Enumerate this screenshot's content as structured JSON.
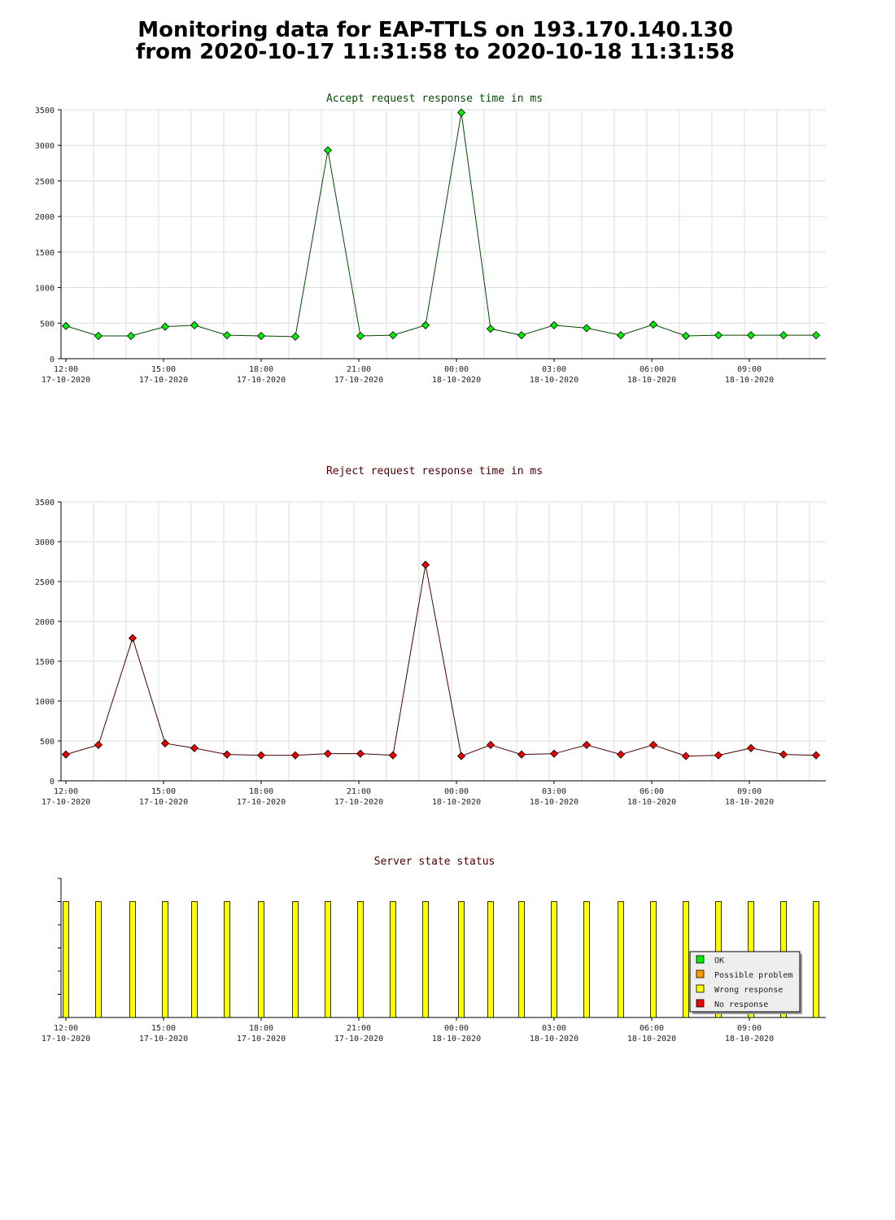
{
  "page": {
    "title_line1": "Monitoring data for EAP-TTLS on 193.170.140.130",
    "title_line2": "from 2020-10-17 11:31:58 to 2020-10-18 11:31:58"
  },
  "x_axis": {
    "ticks": [
      {
        "time": "12:00",
        "date": "17-10-2020",
        "h": 0
      },
      {
        "time": "15:00",
        "date": "17-10-2020",
        "h": 3
      },
      {
        "time": "18:00",
        "date": "17-10-2020",
        "h": 6
      },
      {
        "time": "21:00",
        "date": "17-10-2020",
        "h": 9
      },
      {
        "time": "00:00",
        "date": "18-10-2020",
        "h": 12
      },
      {
        "time": "03:00",
        "date": "18-10-2020",
        "h": 15
      },
      {
        "time": "06:00",
        "date": "18-10-2020",
        "h": 18
      },
      {
        "time": "09:00",
        "date": "18-10-2020",
        "h": 21
      }
    ]
  },
  "chart_data": [
    {
      "type": "line",
      "title": "Accept request response time in ms",
      "title_color": "#005000",
      "line_color": "#004a00",
      "marker_color": "#00ee00",
      "x_hours": [
        0.15,
        1.15,
        2.15,
        3.2,
        4.1,
        5.1,
        6.15,
        7.2,
        8.2,
        9.2,
        10.2,
        11.2,
        12.3,
        13.2,
        14.15,
        15.15,
        16.15,
        17.2,
        18.2,
        19.2,
        20.2,
        21.2,
        22.2,
        23.2
      ],
      "values": [
        460,
        320,
        320,
        450,
        470,
        330,
        320,
        310,
        2930,
        320,
        330,
        470,
        3460,
        420,
        330,
        470,
        430,
        330,
        480,
        320,
        330,
        330,
        330,
        330
      ],
      "ylim": [
        0,
        3500
      ],
      "yticks": [
        0,
        500,
        1000,
        1500,
        2000,
        2500,
        3000,
        3500
      ],
      "grid": true
    },
    {
      "type": "line",
      "title": "Reject request response time in ms",
      "title_color": "#500000",
      "line_color": "#4a0000",
      "marker_color": "#ee0000",
      "x_hours": [
        0.15,
        1.15,
        2.2,
        3.2,
        4.1,
        5.1,
        6.15,
        7.2,
        8.2,
        9.2,
        10.2,
        11.2,
        12.3,
        13.2,
        14.15,
        15.15,
        16.15,
        17.2,
        18.2,
        19.2,
        20.2,
        21.2,
        22.2,
        23.2
      ],
      "values": [
        330,
        450,
        1790,
        470,
        410,
        330,
        320,
        320,
        340,
        340,
        320,
        2710,
        310,
        450,
        330,
        340,
        450,
        330,
        450,
        310,
        320,
        410,
        330,
        320
      ],
      "ylim": [
        0,
        3500
      ],
      "yticks": [
        0,
        500,
        1000,
        1500,
        2000,
        2500,
        3000,
        3500
      ],
      "grid": true
    },
    {
      "type": "bar",
      "title": "Server state status",
      "title_color": "#500000",
      "x_hours": [
        0.15,
        1.15,
        2.2,
        3.2,
        4.1,
        5.1,
        6.15,
        7.2,
        8.2,
        9.2,
        10.2,
        11.2,
        12.3,
        13.2,
        14.15,
        15.15,
        16.15,
        17.2,
        18.2,
        19.2,
        20.2,
        21.2,
        22.2,
        23.2
      ],
      "states": [
        "Wrong response",
        "Wrong response",
        "Wrong response",
        "Wrong response",
        "Wrong response",
        "Wrong response",
        "Wrong response",
        "Wrong response",
        "Wrong response",
        "Wrong response",
        "Wrong response",
        "Wrong response",
        "Wrong response",
        "Wrong response",
        "Wrong response",
        "Wrong response",
        "Wrong response",
        "Wrong response",
        "Wrong response",
        "Wrong response",
        "Wrong response",
        "Wrong response",
        "Wrong response",
        "Wrong response"
      ],
      "legend_position": "bottom-right",
      "legend": [
        {
          "label": "OK",
          "color": "#00ee00"
        },
        {
          "label": "Possible problem",
          "color": "#ff9900"
        },
        {
          "label": "Wrong response",
          "color": "#ffff00"
        },
        {
          "label": "No response",
          "color": "#ee0000"
        }
      ]
    }
  ]
}
